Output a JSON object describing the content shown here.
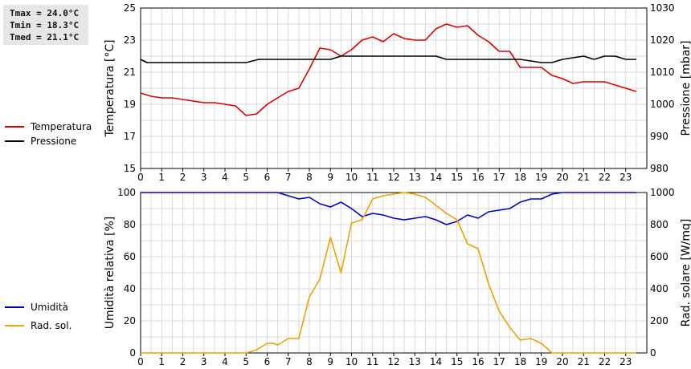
{
  "stats": [
    {
      "label": "Tmax",
      "value": "24.0°C"
    },
    {
      "label": "Tmin",
      "value": "18.3°C"
    },
    {
      "label": "Tmed",
      "value": "21.1°C"
    }
  ],
  "chart_data": [
    {
      "type": "line",
      "x_ticks": [
        "0",
        "1",
        "2",
        "3",
        "4",
        "5",
        "6",
        "7",
        "8",
        "9",
        "10",
        "11",
        "12",
        "13",
        "14",
        "15",
        "16",
        "17",
        "18",
        "19",
        "20",
        "21",
        "22",
        "23"
      ],
      "xlim": [
        0,
        24
      ],
      "ylabel_left": "Temperatura [°C]",
      "ylabel_right": "Pressione [mbar]",
      "ylim_left": [
        15,
        25
      ],
      "yticks_left": [
        "15",
        "17",
        "19",
        "21",
        "23",
        "25"
      ],
      "ylim_right": [
        980,
        1030
      ],
      "yticks_right": [
        "980",
        "990",
        "1000",
        "1010",
        "1020",
        "1030"
      ],
      "grid": true,
      "series": [
        {
          "name": "Temperatura",
          "axis": "left",
          "color": "#dd0000",
          "x": [
            0,
            0.5,
            1,
            1.5,
            2,
            2.5,
            3,
            3.5,
            4,
            4.5,
            5,
            5.5,
            6,
            6.5,
            7,
            7.5,
            8,
            8.5,
            9,
            9.5,
            10,
            10.5,
            11,
            11.5,
            12,
            12.5,
            13,
            13.5,
            14,
            14.5,
            15,
            15.5,
            16,
            16.5,
            17,
            17.5,
            18,
            18.5,
            19,
            19.5,
            20,
            20.5,
            21,
            21.5,
            22,
            22.5,
            23,
            23.5
          ],
          "y": [
            19.7,
            19.5,
            19.4,
            19.4,
            19.3,
            19.2,
            19.1,
            19.1,
            19.0,
            18.9,
            18.3,
            18.4,
            19.0,
            19.4,
            19.8,
            20.0,
            21.2,
            22.5,
            22.4,
            22.0,
            22.4,
            23.0,
            23.2,
            22.9,
            23.4,
            23.1,
            23.0,
            23.0,
            23.7,
            24.0,
            23.8,
            23.9,
            23.3,
            22.9,
            22.3,
            22.3,
            21.3,
            21.3,
            21.3,
            20.8,
            20.6,
            20.3,
            20.4,
            20.4,
            20.4,
            20.2,
            20.0,
            19.8
          ]
        },
        {
          "name": "Pressione",
          "axis": "right",
          "color": "#000000",
          "x": [
            0,
            0.3,
            1,
            2,
            3,
            4,
            5,
            5.6,
            6,
            7,
            8,
            9,
            9.5,
            10,
            11,
            12,
            13,
            14,
            14.5,
            15,
            16,
            17,
            18,
            19,
            19.5,
            20,
            21,
            21.5,
            22,
            22.5,
            23,
            23.5
          ],
          "y": [
            1014,
            1013,
            1013,
            1013,
            1013,
            1013,
            1013,
            1014,
            1014,
            1014,
            1014,
            1014,
            1015,
            1015,
            1015,
            1015,
            1015,
            1015,
            1014,
            1014,
            1014,
            1014,
            1014,
            1013,
            1013,
            1014,
            1015,
            1014,
            1015,
            1015,
            1014,
            1014
          ]
        }
      ]
    },
    {
      "type": "line",
      "x_ticks": [
        "0",
        "1",
        "2",
        "3",
        "4",
        "5",
        "6",
        "7",
        "8",
        "9",
        "10",
        "11",
        "12",
        "13",
        "14",
        "15",
        "16",
        "17",
        "18",
        "19",
        "20",
        "21",
        "22",
        "23"
      ],
      "xlim": [
        0,
        24
      ],
      "ylabel_left": "Umidità relativa [%]",
      "ylabel_right": "Rad. solare [W/mq]",
      "ylim_left": [
        0,
        100
      ],
      "yticks_left": [
        "0",
        "20",
        "40",
        "60",
        "80",
        "100"
      ],
      "ylim_right": [
        0,
        1000
      ],
      "yticks_right": [
        "0",
        "200",
        "400",
        "600",
        "800",
        "1000"
      ],
      "grid": true,
      "series": [
        {
          "name": "Umidità",
          "axis": "left",
          "color": "#0000cc",
          "x": [
            0,
            1,
            2,
            3,
            4,
            5,
            6,
            6.5,
            7,
            7.5,
            8,
            8.5,
            9,
            9.5,
            10,
            10.5,
            11,
            11.5,
            12,
            12.5,
            13,
            13.5,
            14,
            14.5,
            15,
            15.5,
            16,
            16.5,
            17,
            17.5,
            18,
            18.5,
            19,
            19.5,
            20,
            21,
            22,
            23,
            23.5
          ],
          "y": [
            100,
            100,
            100,
            100,
            100,
            100,
            100,
            100,
            98,
            96,
            97,
            93,
            91,
            94,
            90,
            85,
            87,
            86,
            84,
            83,
            84,
            85,
            83,
            80,
            82,
            86,
            84,
            88,
            89,
            90,
            94,
            96,
            96,
            99,
            100,
            100,
            100,
            100,
            100
          ]
        },
        {
          "name": "Rad. sol.",
          "axis": "right",
          "color": "#f0a000",
          "x": [
            0,
            1,
            2,
            3,
            4,
            5,
            5.5,
            6,
            6.3,
            6.5,
            7,
            7.5,
            8,
            8.5,
            9,
            9.5,
            10,
            10.5,
            11,
            11.5,
            12,
            12.5,
            13,
            13.5,
            14,
            14.5,
            15,
            15.5,
            16,
            16.5,
            17,
            17.5,
            18,
            18.5,
            19,
            19.5,
            20,
            21,
            22,
            23,
            23.5
          ],
          "y": [
            0,
            0,
            0,
            0,
            0,
            0,
            20,
            60,
            60,
            50,
            90,
            90,
            350,
            460,
            720,
            500,
            810,
            830,
            960,
            980,
            990,
            1000,
            990,
            970,
            920,
            870,
            830,
            680,
            650,
            430,
            260,
            160,
            80,
            90,
            60,
            0,
            0,
            0,
            0,
            0,
            0
          ]
        }
      ]
    }
  ]
}
